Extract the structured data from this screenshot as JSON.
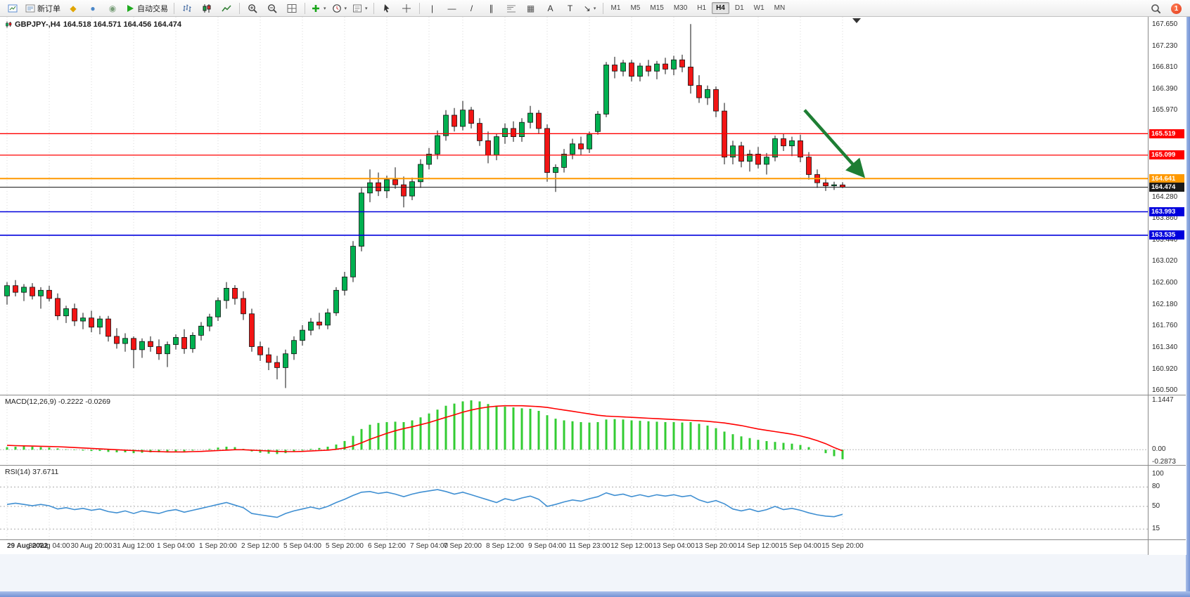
{
  "toolbar": {
    "badge_count": "1",
    "timeframes": [
      "M1",
      "M5",
      "M15",
      "M30",
      "H1",
      "H4",
      "D1",
      "W1",
      "MN"
    ],
    "active_timeframe": "H4",
    "items": [
      {
        "name": "new-chart",
        "icon": "chartnew"
      },
      {
        "name": "new-order",
        "icon": "order",
        "label": "新订单"
      },
      {
        "name": "metaeditor",
        "glyph": "◆",
        "color": "#e0a500"
      },
      {
        "name": "market",
        "glyph": "●",
        "color": "#4a86c8"
      },
      {
        "name": "community",
        "glyph": "◉",
        "color": "#7a9f7a"
      },
      {
        "name": "autotrading",
        "icon": "play",
        "label": "自动交易"
      },
      {
        "sep": true
      },
      {
        "name": "bar-chart",
        "icon": "bars"
      },
      {
        "name": "candle-chart",
        "icon": "candles"
      },
      {
        "name": "line-chart",
        "icon": "linec"
      },
      {
        "sep": true
      },
      {
        "name": "zoom-in",
        "icon": "zoomin"
      },
      {
        "name": "zoom-out",
        "icon": "zoomout"
      },
      {
        "name": "tile-windows",
        "icon": "tile"
      },
      {
        "sep": true
      },
      {
        "name": "indicators",
        "icon": "plus",
        "caret": true
      },
      {
        "name": "periods",
        "icon": "clock",
        "caret": true
      },
      {
        "name": "templates",
        "icon": "tpl",
        "caret": true
      },
      {
        "sep": true
      },
      {
        "name": "cursor",
        "icon": "cursor"
      },
      {
        "name": "crosshair",
        "icon": "cross"
      },
      {
        "sep": true
      },
      {
        "name": "vertical-line",
        "glyph": "|",
        "color": "#333333"
      },
      {
        "name": "horizontal-line",
        "glyph": "—",
        "color": "#333333"
      },
      {
        "name": "trendline",
        "glyph": "/",
        "color": "#333333"
      },
      {
        "name": "channel",
        "glyph": "∥",
        "color": "#333333"
      },
      {
        "name": "fibonacci",
        "icon": "fibo"
      },
      {
        "name": "shapes",
        "glyph": "▦",
        "color": "#555555"
      },
      {
        "name": "text",
        "glyph": "A",
        "color": "#333333"
      },
      {
        "name": "text-label",
        "glyph": "T",
        "color": "#333333"
      },
      {
        "name": "arrows",
        "glyph": "↘",
        "color": "#333333",
        "caret": true
      },
      {
        "sep": true
      }
    ]
  },
  "chart": {
    "symbol_title": "GBPJPY-,H4",
    "ohlc_text": "164.518 164.571 164.456 164.474",
    "current_price": "164.474",
    "macd_label": "MACD(12,26,9)",
    "macd_values": "-0.2222 -0.0269",
    "rsi_label": "RSI(14)",
    "rsi_value": "37.6711"
  },
  "chart_data": {
    "type": "candlestick",
    "symbol": "GBPJPY-",
    "timeframe": "H4",
    "ohlc": {
      "open": "164.518",
      "high": "164.571",
      "low": "164.456",
      "close": "164.474"
    },
    "colors": {
      "up": "#00b050",
      "down": "#f21515",
      "wick": "#111111",
      "macd_hist": "#33cc33",
      "macd_signal": "#ff0000",
      "rsi_line": "#3f8fd2",
      "grid": "#d9d9d9"
    },
    "price_range": [
      160.42,
      167.8
    ],
    "price_axis_ticks": [
      "167.650",
      "167.230",
      "166.810",
      "166.390",
      "165.970",
      "164.280",
      "163.860",
      "163.440",
      "163.020",
      "162.600",
      "162.180",
      "161.760",
      "161.340",
      "160.920",
      "160.500"
    ],
    "levels": [
      {
        "price": 165.519,
        "label": "165.519",
        "color": "#ff0000",
        "width": 1.3
      },
      {
        "price": 165.099,
        "label": "165.099",
        "color": "#ff0000",
        "width": 1.3
      },
      {
        "price": 164.641,
        "label": "164.641",
        "color": "#ff9900",
        "width": 2
      },
      {
        "price": 164.474,
        "label": "164.474",
        "color": "#1a1a1a",
        "width": 1,
        "current": true
      },
      {
        "price": 163.993,
        "label": "163.993",
        "color": "#0000dd",
        "width": 1.6
      },
      {
        "price": 163.535,
        "label": "163.535",
        "color": "#0000dd",
        "width": 1.6
      }
    ],
    "time_labels": [
      "29 Aug 2022",
      "30 Aug 04:00",
      "30 Aug 20:00",
      "31 Aug 12:00",
      "1 Sep 04:00",
      "1 Sep 20:00",
      "2 Sep 12:00",
      "5 Sep 04:00",
      "5 Sep 20:00",
      "6 Sep 12:00",
      "7 Sep 04:00",
      "7 Sep 20:00",
      "8 Sep 12:00",
      "9 Sep 04:00",
      "11 Sep 23:00",
      "12 Sep 12:00",
      "13 Sep 04:00",
      "13 Sep 20:00",
      "14 Sep 12:00",
      "15 Sep 04:00",
      "15 Sep 20:00"
    ],
    "candles": [
      [
        162.35,
        162.62,
        162.18,
        162.55
      ],
      [
        162.55,
        162.66,
        162.34,
        162.42
      ],
      [
        162.42,
        162.58,
        162.25,
        162.52
      ],
      [
        162.52,
        162.6,
        162.28,
        162.35
      ],
      [
        162.35,
        162.52,
        162.1,
        162.46
      ],
      [
        162.46,
        162.55,
        162.24,
        162.3
      ],
      [
        162.3,
        162.4,
        161.88,
        161.96
      ],
      [
        161.96,
        162.16,
        161.82,
        162.1
      ],
      [
        162.1,
        162.2,
        161.76,
        161.86
      ],
      [
        161.86,
        162.02,
        161.7,
        161.92
      ],
      [
        161.92,
        162.06,
        161.64,
        161.74
      ],
      [
        161.74,
        161.96,
        161.6,
        161.9
      ],
      [
        161.9,
        161.96,
        161.46,
        161.56
      ],
      [
        161.56,
        161.72,
        161.32,
        161.42
      ],
      [
        161.42,
        161.62,
        161.26,
        161.52
      ],
      [
        161.52,
        161.56,
        160.94,
        161.3
      ],
      [
        161.3,
        161.52,
        161.14,
        161.46
      ],
      [
        161.46,
        161.56,
        161.26,
        161.36
      ],
      [
        161.36,
        161.5,
        161.1,
        161.22
      ],
      [
        161.22,
        161.46,
        160.96,
        161.4
      ],
      [
        161.4,
        161.6,
        161.3,
        161.54
      ],
      [
        161.54,
        161.7,
        161.22,
        161.32
      ],
      [
        161.32,
        161.64,
        161.24,
        161.58
      ],
      [
        161.58,
        161.84,
        161.48,
        161.76
      ],
      [
        161.76,
        162.0,
        161.66,
        161.94
      ],
      [
        161.94,
        162.32,
        161.86,
        162.26
      ],
      [
        162.26,
        162.62,
        162.1,
        162.5
      ],
      [
        162.5,
        162.56,
        162.18,
        162.3
      ],
      [
        162.3,
        162.44,
        161.88,
        162.0
      ],
      [
        162.0,
        162.1,
        161.26,
        161.36
      ],
      [
        161.36,
        161.46,
        161.08,
        161.2
      ],
      [
        161.2,
        161.34,
        160.9,
        161.05
      ],
      [
        161.05,
        161.18,
        160.72,
        160.95
      ],
      [
        160.95,
        161.3,
        160.55,
        161.22
      ],
      [
        161.22,
        161.56,
        161.1,
        161.48
      ],
      [
        161.48,
        161.78,
        161.38,
        161.68
      ],
      [
        161.68,
        161.92,
        161.58,
        161.84
      ],
      [
        161.84,
        162.02,
        161.7,
        161.78
      ],
      [
        161.78,
        162.1,
        161.7,
        162.02
      ],
      [
        162.02,
        162.52,
        161.96,
        162.46
      ],
      [
        162.46,
        162.82,
        162.36,
        162.72
      ],
      [
        162.72,
        163.42,
        162.62,
        163.32
      ],
      [
        163.32,
        164.46,
        163.22,
        164.36
      ],
      [
        164.36,
        164.82,
        164.18,
        164.56
      ],
      [
        164.56,
        164.76,
        164.3,
        164.4
      ],
      [
        164.4,
        164.7,
        164.26,
        164.62
      ],
      [
        164.62,
        164.86,
        164.44,
        164.52
      ],
      [
        164.52,
        164.68,
        164.08,
        164.3
      ],
      [
        164.3,
        164.66,
        164.22,
        164.58
      ],
      [
        164.58,
        165.02,
        164.46,
        164.92
      ],
      [
        164.92,
        165.24,
        164.82,
        165.12
      ],
      [
        165.12,
        165.58,
        165.02,
        165.48
      ],
      [
        165.48,
        165.98,
        165.38,
        165.88
      ],
      [
        165.88,
        166.02,
        165.56,
        165.66
      ],
      [
        165.66,
        166.16,
        165.58,
        165.98
      ],
      [
        165.98,
        166.04,
        165.62,
        165.72
      ],
      [
        165.72,
        165.82,
        165.28,
        165.38
      ],
      [
        165.38,
        165.56,
        164.94,
        165.1
      ],
      [
        165.1,
        165.52,
        165.0,
        165.46
      ],
      [
        165.46,
        165.72,
        165.32,
        165.62
      ],
      [
        165.62,
        165.76,
        165.36,
        165.46
      ],
      [
        165.46,
        165.82,
        165.36,
        165.74
      ],
      [
        165.74,
        166.06,
        165.62,
        165.92
      ],
      [
        165.92,
        165.98,
        165.52,
        165.62
      ],
      [
        165.62,
        165.7,
        164.58,
        164.76
      ],
      [
        164.76,
        164.92,
        164.38,
        164.86
      ],
      [
        164.86,
        165.22,
        164.76,
        165.12
      ],
      [
        165.12,
        165.42,
        165.02,
        165.32
      ],
      [
        165.32,
        165.46,
        165.1,
        165.22
      ],
      [
        165.22,
        165.56,
        165.14,
        165.5
      ],
      [
        165.56,
        165.96,
        165.5,
        165.9
      ],
      [
        165.9,
        166.92,
        165.84,
        166.86
      ],
      [
        166.86,
        167.02,
        166.6,
        166.74
      ],
      [
        166.74,
        166.96,
        166.64,
        166.9
      ],
      [
        166.9,
        166.96,
        166.54,
        166.64
      ],
      [
        166.64,
        166.9,
        166.54,
        166.84
      ],
      [
        166.84,
        166.96,
        166.64,
        166.74
      ],
      [
        166.74,
        166.94,
        166.58,
        166.88
      ],
      [
        166.88,
        167.0,
        166.68,
        166.78
      ],
      [
        166.78,
        167.04,
        166.66,
        166.96
      ],
      [
        166.96,
        167.06,
        166.72,
        166.82
      ],
      [
        166.82,
        167.66,
        166.3,
        166.46
      ],
      [
        166.46,
        166.66,
        166.12,
        166.22
      ],
      [
        166.22,
        166.46,
        166.08,
        166.38
      ],
      [
        166.38,
        166.44,
        165.84,
        165.96
      ],
      [
        165.96,
        166.12,
        164.92,
        165.06
      ],
      [
        165.06,
        165.38,
        164.92,
        165.28
      ],
      [
        165.28,
        165.36,
        164.86,
        164.98
      ],
      [
        164.98,
        165.2,
        164.78,
        165.12
      ],
      [
        165.12,
        165.26,
        164.84,
        164.92
      ],
      [
        164.92,
        165.14,
        164.72,
        165.06
      ],
      [
        165.06,
        165.48,
        164.98,
        165.42
      ],
      [
        165.42,
        165.52,
        165.18,
        165.28
      ],
      [
        165.28,
        165.46,
        165.08,
        165.38
      ],
      [
        165.38,
        165.5,
        164.96,
        165.06
      ],
      [
        165.06,
        165.16,
        164.62,
        164.72
      ],
      [
        164.72,
        164.82,
        164.46,
        164.56
      ],
      [
        164.56,
        164.66,
        164.4,
        164.5
      ],
      [
        164.5,
        164.58,
        164.42,
        164.52
      ],
      [
        164.518,
        164.571,
        164.456,
        164.474
      ]
    ],
    "macd": {
      "axis_ticks": [
        {
          "v": 1.1447,
          "label": "1.1447"
        },
        {
          "v": 0,
          "label": "0.00"
        },
        {
          "v": -0.2873,
          "label": "-0.2873"
        }
      ],
      "histogram": [
        0.06,
        0.07,
        0.08,
        0.07,
        0.06,
        0.05,
        0.03,
        0.01,
        -0.01,
        -0.02,
        -0.03,
        -0.03,
        -0.05,
        -0.06,
        -0.06,
        -0.08,
        -0.07,
        -0.06,
        -0.06,
        -0.05,
        -0.04,
        -0.04,
        -0.02,
        0.0,
        0.02,
        0.05,
        0.07,
        0.06,
        0.02,
        -0.04,
        -0.07,
        -0.09,
        -0.1,
        -0.08,
        -0.05,
        -0.02,
        0.02,
        0.04,
        0.07,
        0.12,
        0.2,
        0.32,
        0.48,
        0.58,
        0.62,
        0.64,
        0.65,
        0.64,
        0.68,
        0.75,
        0.84,
        0.93,
        1.02,
        1.07,
        1.12,
        1.1447,
        1.12,
        1.06,
        1.02,
        1.0,
        0.98,
        0.96,
        0.95,
        0.9,
        0.8,
        0.72,
        0.68,
        0.66,
        0.64,
        0.63,
        0.64,
        0.7,
        0.71,
        0.7,
        0.68,
        0.67,
        0.66,
        0.65,
        0.64,
        0.64,
        0.63,
        0.64,
        0.6,
        0.56,
        0.5,
        0.42,
        0.36,
        0.31,
        0.27,
        0.23,
        0.2,
        0.18,
        0.16,
        0.14,
        0.11,
        0.06,
        0.0,
        -0.08,
        -0.15,
        -0.2222
      ],
      "signal": [
        0.1,
        0.095,
        0.09,
        0.085,
        0.08,
        0.075,
        0.07,
        0.06,
        0.05,
        0.04,
        0.03,
        0.02,
        0.01,
        0.0,
        -0.01,
        -0.02,
        -0.03,
        -0.04,
        -0.045,
        -0.05,
        -0.05,
        -0.05,
        -0.045,
        -0.04,
        -0.03,
        -0.02,
        -0.01,
        0.0,
        0.0,
        -0.01,
        -0.02,
        -0.03,
        -0.04,
        -0.045,
        -0.045,
        -0.04,
        -0.03,
        -0.02,
        -0.01,
        0.01,
        0.04,
        0.09,
        0.16,
        0.24,
        0.31,
        0.38,
        0.44,
        0.49,
        0.53,
        0.58,
        0.63,
        0.69,
        0.75,
        0.81,
        0.87,
        0.92,
        0.96,
        0.99,
        1.01,
        1.02,
        1.02,
        1.02,
        1.01,
        1.0,
        0.98,
        0.95,
        0.92,
        0.89,
        0.86,
        0.83,
        0.8,
        0.78,
        0.77,
        0.76,
        0.75,
        0.74,
        0.73,
        0.72,
        0.71,
        0.7,
        0.69,
        0.68,
        0.67,
        0.66,
        0.64,
        0.62,
        0.59,
        0.56,
        0.52,
        0.48,
        0.45,
        0.42,
        0.39,
        0.36,
        0.32,
        0.27,
        0.21,
        0.14,
        0.05,
        -0.0269
      ]
    },
    "rsi": {
      "axis_ticks": [
        {
          "v": 100,
          "label": "100"
        },
        {
          "v": 80,
          "label": "80"
        },
        {
          "v": 50,
          "label": "50"
        },
        {
          "v": 15,
          "label": "15"
        }
      ],
      "level_lines": [
        80,
        50,
        15
      ],
      "values": [
        53,
        55,
        53,
        51,
        53,
        51,
        46,
        48,
        45,
        47,
        44,
        46,
        42,
        40,
        43,
        39,
        43,
        41,
        39,
        43,
        45,
        41,
        44,
        47,
        50,
        53,
        56,
        52,
        48,
        39,
        37,
        35,
        33,
        39,
        43,
        46,
        49,
        46,
        50,
        56,
        61,
        67,
        72,
        73,
        70,
        72,
        69,
        65,
        69,
        72,
        74,
        76,
        73,
        69,
        72,
        68,
        64,
        60,
        56,
        62,
        59,
        63,
        66,
        61,
        50,
        53,
        57,
        60,
        58,
        62,
        65,
        71,
        67,
        69,
        65,
        68,
        65,
        68,
        66,
        68,
        65,
        67,
        60,
        56,
        59,
        54,
        46,
        43,
        46,
        42,
        45,
        50,
        45,
        47,
        44,
        40,
        37,
        35,
        34,
        37.6711
      ]
    },
    "arrow": {
      "i1": 94.5,
      "p1": 165.98,
      "i2": 101.3,
      "p2": 164.72,
      "color": "#1e7e34"
    }
  }
}
